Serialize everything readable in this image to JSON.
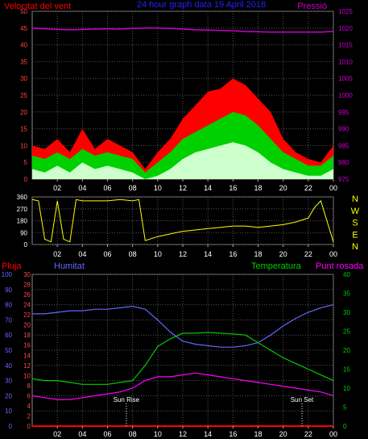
{
  "header": {
    "left_label": "Velocitat del vent",
    "center_title": "24 hour graph data  19 April 2018",
    "right_label": "Pressió"
  },
  "colors": {
    "background": "#000000",
    "grid": "#555555",
    "wind_gust": "#ff0000",
    "wind_avg": "#00d000",
    "wind_min": "#ccffcc",
    "pressure": "#cc00cc",
    "direction": "#ffff00",
    "humidity": "#6666ff",
    "temperature": "#00cc00",
    "dewpoint": "#ff00ff",
    "rain": "#ff0000",
    "sun_marker": "#ffffff"
  },
  "chart_data": [
    {
      "type": "line",
      "name": "wind-pressure",
      "left_label": "Velocitat del vent",
      "right_label": "Pressió",
      "ylim_left": [
        0,
        50
      ],
      "ylim_right": [
        975,
        1025
      ],
      "left_ticks": [
        0,
        5,
        10,
        15,
        20,
        25,
        30,
        35,
        40,
        45,
        50
      ],
      "right_ticks": [
        975,
        980,
        985,
        990,
        995,
        1000,
        1005,
        1010,
        1015,
        1020,
        1025
      ],
      "x_tick_labels": [
        "02",
        "04",
        "06",
        "08",
        "10",
        "12",
        "14",
        "16",
        "18",
        "20",
        "22",
        "00"
      ],
      "hours": [
        0,
        1,
        2,
        3,
        4,
        5,
        6,
        7,
        8,
        9,
        10,
        11,
        12,
        13,
        14,
        15,
        16,
        17,
        18,
        19,
        20,
        21,
        22,
        23,
        24
      ],
      "gust": [
        10,
        9,
        12,
        8,
        15,
        9,
        12,
        10,
        8,
        3,
        8,
        12,
        18,
        22,
        26,
        27,
        30,
        28,
        24,
        20,
        12,
        8,
        6,
        5,
        10
      ],
      "avg": [
        7,
        6,
        8,
        6,
        9,
        7,
        8,
        7,
        6,
        2,
        5,
        8,
        12,
        14,
        16,
        18,
        20,
        19,
        16,
        12,
        8,
        6,
        4,
        4,
        7
      ],
      "min": [
        3,
        2,
        4,
        2,
        5,
        3,
        4,
        3,
        2,
        0,
        1,
        3,
        6,
        8,
        9,
        10,
        11,
        10,
        8,
        5,
        3,
        2,
        1,
        1,
        3
      ],
      "pressure": [
        1020,
        1019.8,
        1019.6,
        1019.5,
        1019.6,
        1019.7,
        1019.8,
        1019.7,
        1019.9,
        1020,
        1020,
        1019.9,
        1019.7,
        1019.5,
        1019.4,
        1019.3,
        1019.2,
        1019,
        1018.9,
        1018.8,
        1018.8,
        1018.8,
        1018.8,
        1018.8,
        1019
      ]
    },
    {
      "type": "scatter",
      "name": "wind-direction",
      "ylim": [
        0,
        360
      ],
      "left_ticks": [
        0,
        90,
        180,
        270,
        360
      ],
      "right_letters": [
        "N",
        "W",
        "S",
        "E",
        "N"
      ],
      "x_tick_labels": [
        "02",
        "04",
        "06",
        "08",
        "10",
        "12",
        "14",
        "16",
        "18",
        "20",
        "22",
        "00"
      ],
      "hours": [
        0,
        0.5,
        1,
        1.5,
        2,
        2.5,
        3,
        3.5,
        4,
        5,
        6,
        7,
        8,
        8.5,
        9,
        10,
        11,
        12,
        13,
        14,
        15,
        16,
        17,
        18,
        19,
        20,
        21,
        22,
        22.5,
        23,
        24
      ],
      "direction": [
        340,
        330,
        40,
        20,
        330,
        40,
        20,
        340,
        330,
        330,
        330,
        340,
        330,
        340,
        30,
        60,
        80,
        100,
        110,
        120,
        130,
        140,
        140,
        130,
        140,
        150,
        170,
        200,
        280,
        330,
        20
      ]
    },
    {
      "type": "line",
      "name": "temperature-humidity",
      "labels": {
        "rain": "Pluja",
        "humidity": "Humitat",
        "temperature": "Temperatura",
        "dewpoint": "Punt rosada"
      },
      "ylim_humidity": [
        0,
        100
      ],
      "ylim_rain": [
        0,
        30
      ],
      "ylim_temp": [
        0,
        40
      ],
      "humidity_ticks": [
        0,
        10,
        20,
        30,
        40,
        50,
        60,
        70,
        80,
        90,
        100
      ],
      "rain_ticks": [
        0,
        2,
        4,
        6,
        8,
        10,
        12,
        14,
        16,
        18,
        20,
        22,
        24,
        26,
        28,
        30
      ],
      "temp_ticks": [
        0,
        5,
        10,
        15,
        20,
        25,
        30,
        35,
        40
      ],
      "x_tick_labels": [
        "02",
        "04",
        "06",
        "08",
        "10",
        "12",
        "14",
        "16",
        "18",
        "20",
        "22",
        "00"
      ],
      "hours": [
        0,
        1,
        2,
        3,
        4,
        5,
        6,
        7,
        8,
        9,
        10,
        11,
        12,
        13,
        14,
        15,
        16,
        17,
        18,
        19,
        20,
        21,
        22,
        23,
        24
      ],
      "humidity": [
        74,
        74,
        75,
        76,
        76,
        77,
        77,
        78,
        79,
        77,
        70,
        62,
        56,
        54,
        53,
        52,
        52,
        53,
        55,
        60,
        66,
        71,
        75,
        78,
        80
      ],
      "temperature": [
        12.5,
        12,
        12,
        11.5,
        11,
        11,
        11,
        11.5,
        12,
        16,
        21,
        23,
        24.5,
        24.5,
        24.7,
        24.5,
        24.3,
        24,
        22,
        20,
        18,
        16.5,
        15,
        13.5,
        12
      ],
      "dewpoint": [
        8,
        7.5,
        7,
        7,
        7.5,
        8,
        8.5,
        9,
        10,
        12,
        13,
        13,
        13.5,
        14,
        13.5,
        13,
        12.5,
        12,
        11.5,
        11,
        10.5,
        10,
        9.5,
        9,
        8
      ],
      "rain": [
        0,
        0,
        0,
        0,
        0,
        0,
        0,
        0,
        0,
        0,
        0,
        0,
        0,
        0,
        0,
        0,
        0,
        0,
        0,
        0,
        0,
        0,
        0,
        0,
        0
      ],
      "annotations": [
        {
          "label": "Sun Rise",
          "hour": 7.5
        },
        {
          "label": "Sun Set",
          "hour": 21.5
        }
      ]
    }
  ]
}
